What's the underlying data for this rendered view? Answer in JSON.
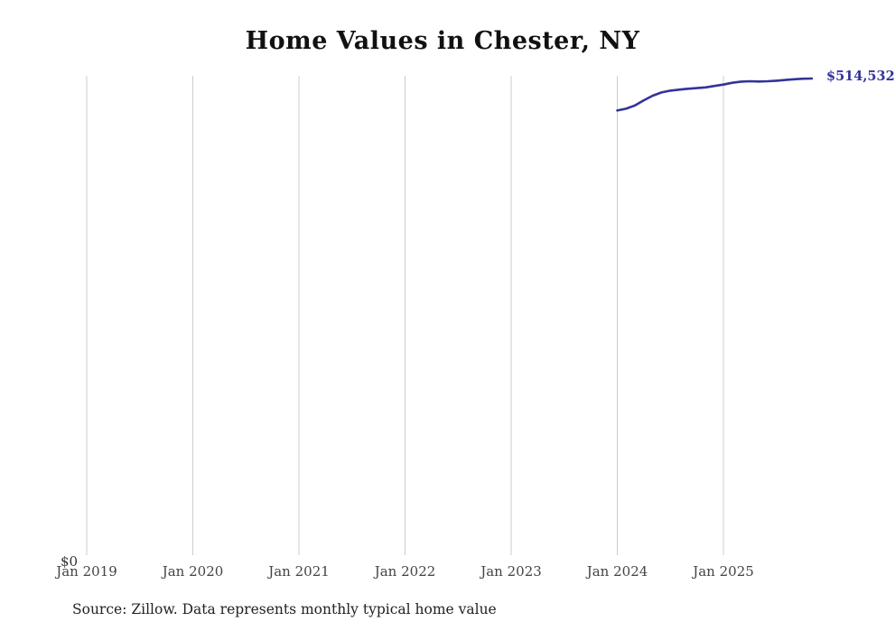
{
  "title": "Home Values in Chester, NY",
  "y_zero_label": "$0",
  "end_label": "$514,532",
  "source_note": "Source: Zillow. Data represents monthly typical home value",
  "colors": {
    "line": "#33339b",
    "gridline": "#cccccc",
    "tick_label": "#444444",
    "end_label": "#33339b"
  },
  "chart_data": {
    "type": "line",
    "title": "Home Values in Chester, NY",
    "xlabel": "",
    "ylabel": "",
    "ylim": [
      0,
      514532
    ],
    "grid": "vertical-only",
    "legend": false,
    "x_tick_labels": [
      "Jan 2019",
      "Jan 2020",
      "Jan 2021",
      "Jan 2022",
      "Jan 2023",
      "Jan 2024",
      "Jan 2025"
    ],
    "series": [
      {
        "name": "Monthly typical home value",
        "x": [
          "2024-01",
          "2024-02",
          "2024-03",
          "2024-04",
          "2024-05",
          "2024-06",
          "2024-07",
          "2024-08",
          "2024-09",
          "2024-10",
          "2024-11",
          "2024-12",
          "2025-01",
          "2025-02",
          "2025-03",
          "2025-04",
          "2025-05",
          "2025-06",
          "2025-07",
          "2025-08",
          "2025-09",
          "2025-10",
          "2025-11"
        ],
        "values": [
          480000,
          482000,
          485500,
          491000,
          496000,
          499500,
          501500,
          502500,
          503500,
          504200,
          505000,
          506500,
          508000,
          510000,
          511200,
          511600,
          511300,
          511600,
          512200,
          513000,
          513800,
          514300,
          514532
        ]
      }
    ]
  }
}
